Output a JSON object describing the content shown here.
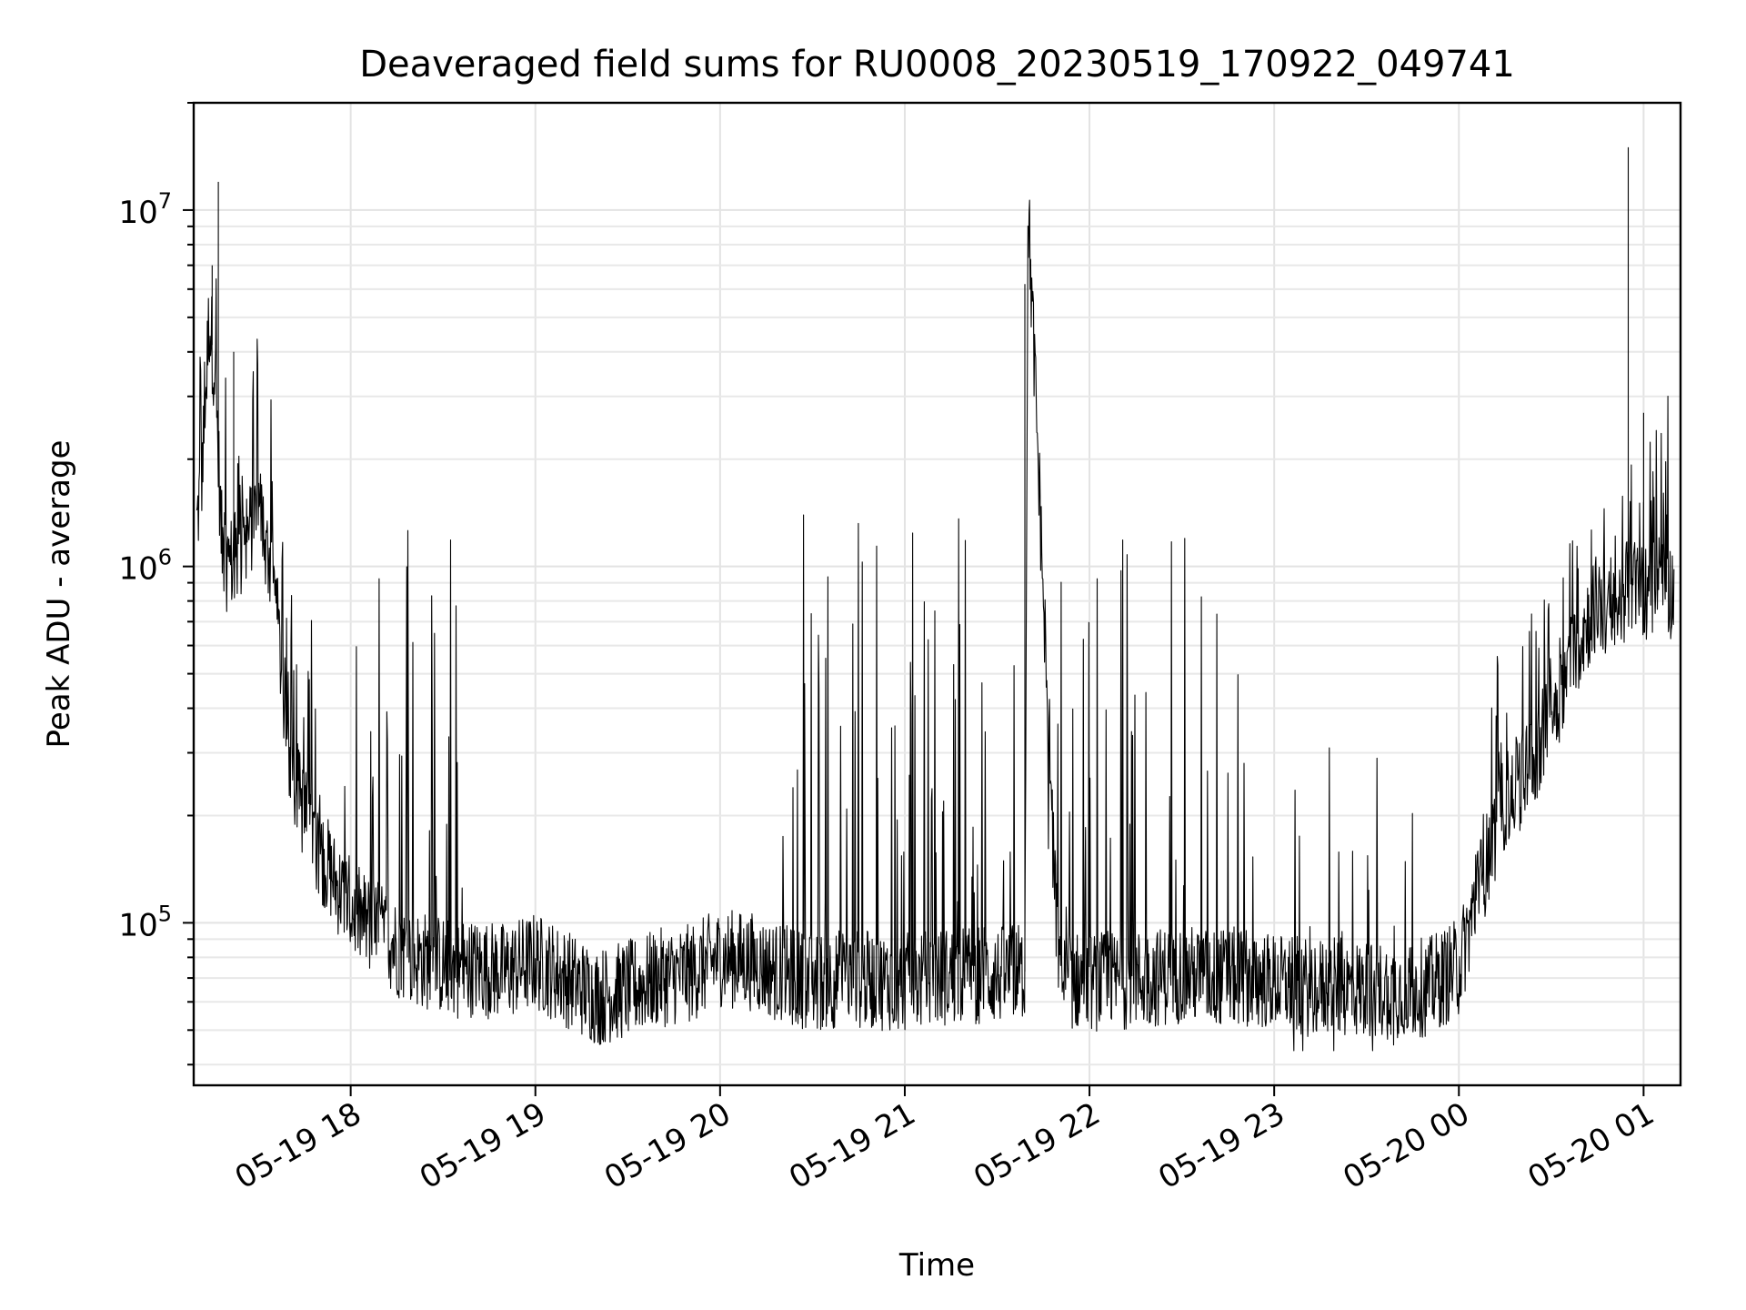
{
  "chart_data": {
    "type": "line",
    "title": "Deaveraged field sums for RU0008_20230519_170922_049741",
    "xlabel": "Time",
    "ylabel": "Peak ADU - average",
    "yscale": "log",
    "ylim": [
      35000,
      20000000
    ],
    "xlim": [
      "2023-05-19 17:09",
      "2023-05-20 01:12"
    ],
    "grid": true,
    "line_color": "#000000",
    "x_ticks": [
      {
        "value": "2023-05-19 18:00",
        "label": "05-19 18"
      },
      {
        "value": "2023-05-19 19:00",
        "label": "05-19 19"
      },
      {
        "value": "2023-05-19 20:00",
        "label": "05-19 20"
      },
      {
        "value": "2023-05-19 21:00",
        "label": "05-19 21"
      },
      {
        "value": "2023-05-19 22:00",
        "label": "05-19 22"
      },
      {
        "value": "2023-05-19 23:00",
        "label": "05-19 23"
      },
      {
        "value": "2023-05-20 00:00",
        "label": "05-20 00"
      },
      {
        "value": "2023-05-20 01:00",
        "label": "05-20 01"
      }
    ],
    "y_ticks": [
      {
        "value": 100000,
        "base": "10",
        "exp": "5"
      },
      {
        "value": 1000000,
        "base": "10",
        "exp": "6"
      },
      {
        "value": 10000000,
        "base": "10",
        "exp": "7"
      }
    ],
    "series": [
      {
        "x": [
          "2023-05-19 17:10",
          "2023-05-19 17:12",
          "2023-05-19 17:14",
          "2023-05-19 17:16",
          "2023-05-19 17:18",
          "2023-05-19 17:20",
          "2023-05-19 17:25",
          "2023-05-19 17:30",
          "2023-05-19 17:35",
          "2023-05-19 17:40",
          "2023-05-19 17:45",
          "2023-05-19 17:50",
          "2023-05-19 17:55",
          "2023-05-19 18:00",
          "2023-05-19 18:05",
          "2023-05-19 18:10",
          "2023-05-19 18:15",
          "2023-05-19 18:20",
          "2023-05-19 18:25",
          "2023-05-19 18:30",
          "2023-05-19 18:35",
          "2023-05-19 18:40",
          "2023-05-19 18:50",
          "2023-05-19 19:00",
          "2023-05-19 19:10",
          "2023-05-19 19:20",
          "2023-05-19 19:30",
          "2023-05-19 19:40",
          "2023-05-19 19:50",
          "2023-05-19 20:00",
          "2023-05-19 20:10",
          "2023-05-19 20:20",
          "2023-05-19 20:30",
          "2023-05-19 20:40",
          "2023-05-19 20:50",
          "2023-05-19 21:00",
          "2023-05-19 21:10",
          "2023-05-19 21:20",
          "2023-05-19 21:30",
          "2023-05-19 21:39",
          "2023-05-19 21:40",
          "2023-05-19 21:50",
          "2023-05-19 22:00",
          "2023-05-19 22:10",
          "2023-05-19 22:20",
          "2023-05-19 22:30",
          "2023-05-19 22:40",
          "2023-05-19 22:50",
          "2023-05-19 23:00",
          "2023-05-19 23:10",
          "2023-05-19 23:20",
          "2023-05-19 23:30",
          "2023-05-19 23:40",
          "2023-05-19 23:50",
          "2023-05-20 00:00",
          "2023-05-20 00:05",
          "2023-05-20 00:10",
          "2023-05-20 00:15",
          "2023-05-20 00:20",
          "2023-05-20 00:25",
          "2023-05-20 00:30",
          "2023-05-20 00:35",
          "2023-05-20 00:40",
          "2023-05-20 00:45",
          "2023-05-20 00:50",
          "2023-05-20 00:55",
          "2023-05-20 01:00",
          "2023-05-20 01:05",
          "2023-05-20 01:10"
        ],
        "y": [
          1300000,
          2000000,
          5000000,
          3500000,
          1200000,
          1000000,
          1100000,
          1500000,
          900000,
          300000,
          200000,
          160000,
          130000,
          110000,
          100000,
          95000,
          85000,
          80000,
          78000,
          76000,
          74000,
          75000,
          73000,
          78000,
          70000,
          62000,
          65000,
          70000,
          72000,
          80000,
          78000,
          72000,
          68000,
          70000,
          69000,
          68000,
          70000,
          72000,
          71000,
          73000,
          10500000,
          70000,
          68000,
          69000,
          70000,
          72000,
          70000,
          71000,
          68000,
          66000,
          66000,
          65000,
          65000,
          66000,
          75000,
          110000,
          160000,
          220000,
          250000,
          300000,
          380000,
          500000,
          650000,
          800000,
          700000,
          900000,
          850000,
          900000,
          850000
        ]
      }
    ],
    "spikes": [
      {
        "x": "2023-05-19 17:17",
        "y": 12000000
      },
      {
        "x": "2023-05-19 17:15",
        "y": 7000000
      },
      {
        "x": "2023-05-19 17:22",
        "y": 4000000
      },
      {
        "x": "2023-05-19 21:39",
        "y": 6200000
      },
      {
        "x": "2023-05-19 21:40",
        "y": 10500000
      },
      {
        "x": "2023-05-20 00:55",
        "y": 15000000
      },
      {
        "x": "2023-05-20 01:00",
        "y": 2700000
      }
    ],
    "burst_bands": [
      {
        "start": "2023-05-19 17:58",
        "end": "2023-05-19 18:38",
        "peak": 1300000
      },
      {
        "start": "2023-05-19 20:20",
        "end": "2023-05-19 21:36",
        "peak": 1400000
      },
      {
        "start": "2023-05-19 21:45",
        "end": "2023-05-19 22:55",
        "peak": 1250000
      },
      {
        "start": "2023-05-19 23:05",
        "end": "2023-05-19 23:45",
        "peak": 350000
      }
    ]
  }
}
